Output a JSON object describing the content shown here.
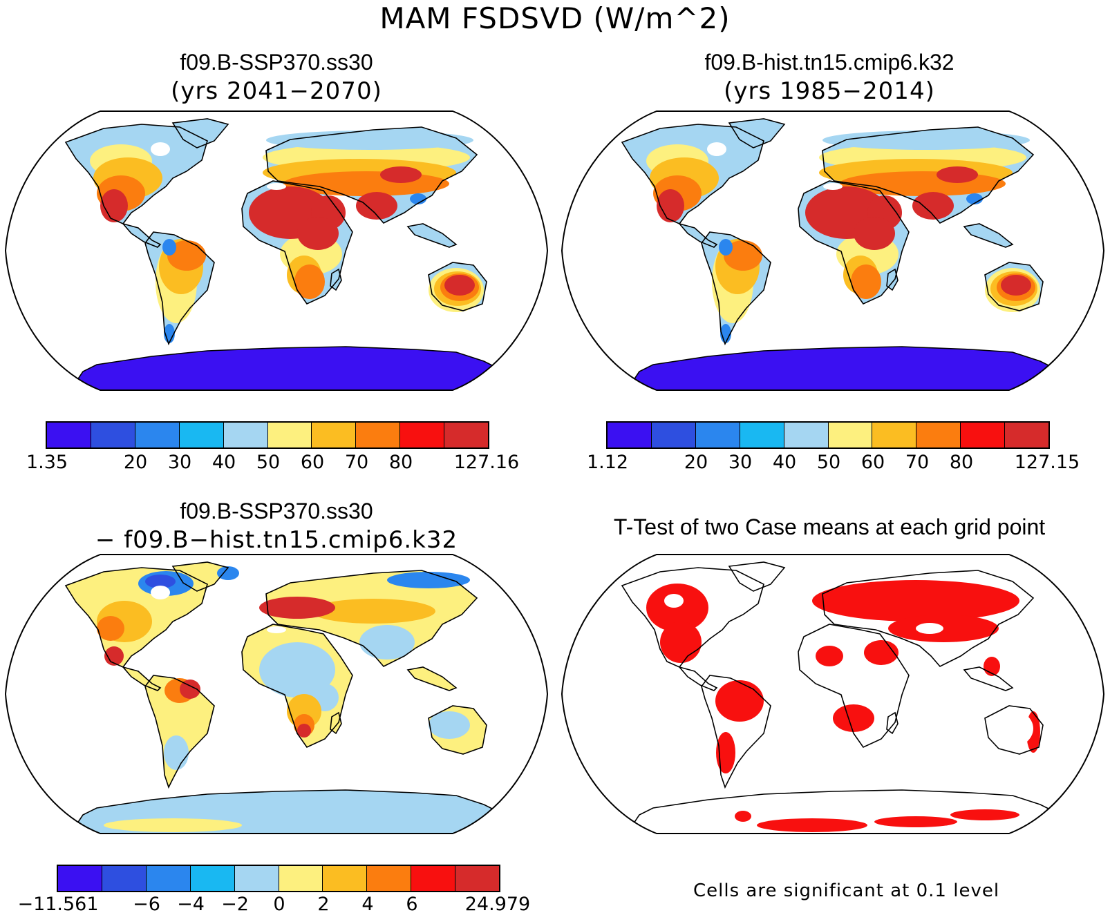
{
  "figure_title": "MAM FSDSVD (W/m^2)",
  "panels": {
    "top_left": {
      "title": "f09.B-SSP370.ss30",
      "subtitle": "(yrs 2041−2070)"
    },
    "top_right": {
      "title": "f09.B-hist.tn15.cmip6.k32",
      "subtitle": "(yrs 1985−2014)"
    },
    "bottom_left": {
      "title": "f09.B-SSP370.ss30",
      "subtitle": "− f09.B−hist.tn15.cmip6.k32"
    },
    "bottom_right": {
      "title": "T-Test of two Case means at each grid point",
      "note": "Cells are significant at 0.1 level"
    }
  },
  "colorbars": {
    "top_left": {
      "labels": [
        "1.35",
        "20",
        "30",
        "40",
        "50",
        "60",
        "70",
        "80",
        "127.16"
      ]
    },
    "top_right": {
      "labels": [
        "1.12",
        "20",
        "30",
        "40",
        "50",
        "60",
        "70",
        "80",
        "127.15"
      ]
    },
    "bottom_left": {
      "labels": [
        "−11.561",
        "−6",
        "−4",
        "−2",
        "0",
        "2",
        "4",
        "6",
        "24.979"
      ]
    }
  },
  "palettes": {
    "levels": [
      "#3b10f2",
      "#2e4fe0",
      "#2b86ee",
      "#19b8f2",
      "#a5d6f2",
      "#fdf07f",
      "#fbbd22",
      "#fb7d0f",
      "#f8100f",
      "#d62b2b"
    ],
    "significance": "#f8100f"
  }
}
